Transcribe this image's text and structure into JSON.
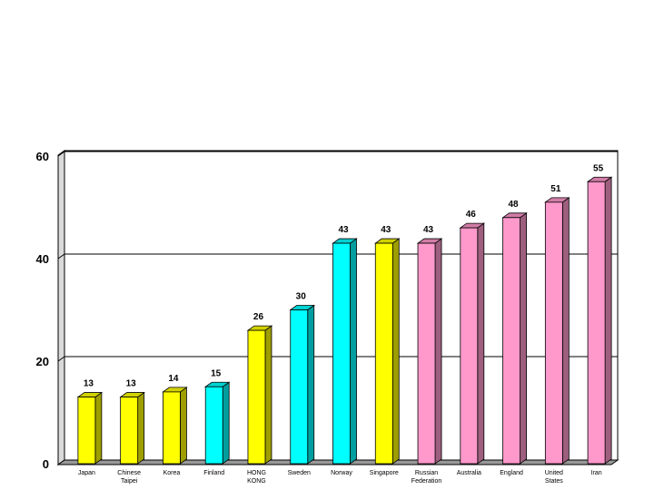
{
  "chart_data": {
    "type": "bar",
    "title": "",
    "xlabel": "",
    "ylabel": "",
    "ylim": [
      0,
      60
    ],
    "yticks": [
      0,
      20,
      40,
      60
    ],
    "grid": true,
    "legend": "none",
    "categories": [
      [
        "Japan"
      ],
      [
        "Chinese",
        "Taipei"
      ],
      [
        "Korea"
      ],
      [
        "Finland"
      ],
      [
        "HONG",
        "KONG"
      ],
      [
        "Sweden"
      ],
      [
        "Norway"
      ],
      [
        "Singapore"
      ],
      [
        "Russian",
        "Federation"
      ],
      [
        "Australia"
      ],
      [
        "England"
      ],
      [
        "United",
        "States"
      ],
      [
        "Iran"
      ]
    ],
    "values": [
      13,
      13,
      14,
      15,
      26,
      30,
      43,
      43,
      43,
      46,
      48,
      51,
      55
    ],
    "value_labels": [
      "13",
      "13",
      "14",
      "15",
      "26",
      "30",
      "43",
      "43",
      "43",
      "46",
      "48",
      "51",
      "55"
    ],
    "bar_colors": [
      "#ffff00",
      "#ffff00",
      "#ffff00",
      "#00ffff",
      "#ffff00",
      "#00ffff",
      "#00ffff",
      "#ffff00",
      "#ff99cc",
      "#ff99cc",
      "#ff99cc",
      "#ff99cc",
      "#ff99cc"
    ]
  }
}
